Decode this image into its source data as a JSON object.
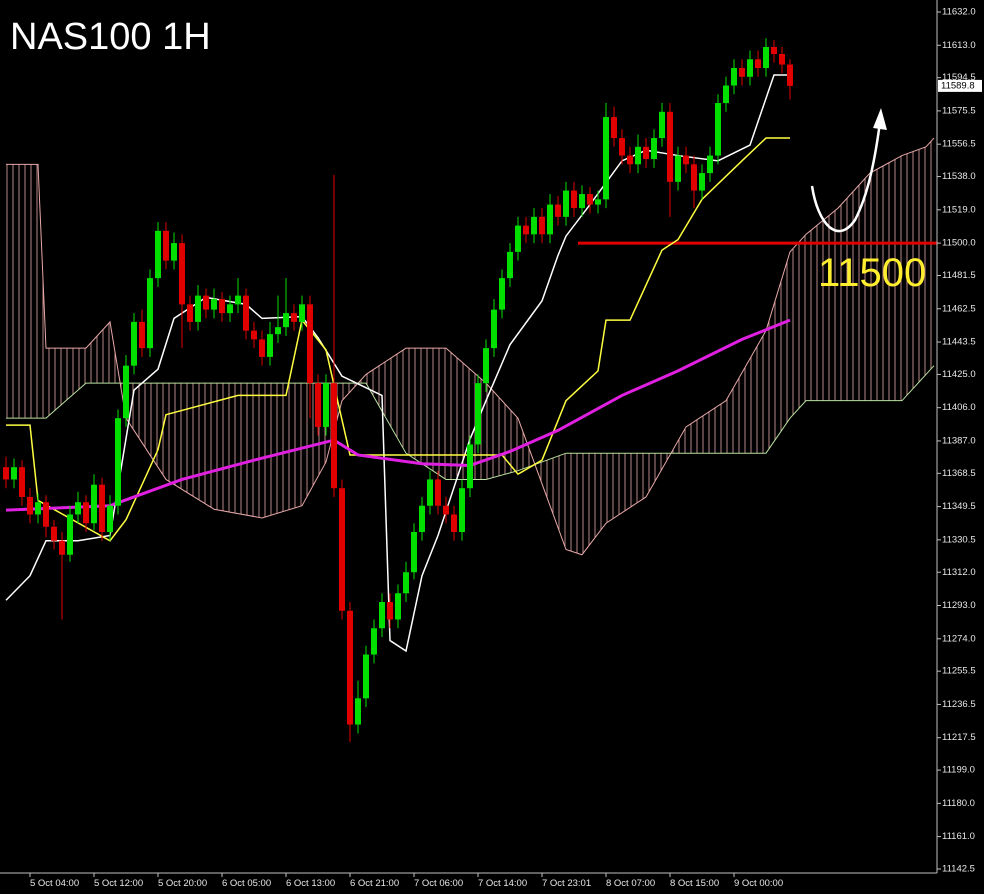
{
  "chart_data": {
    "type": "candlestick",
    "title": "NAS100 1H",
    "annotation": "11500",
    "last_price": 11589.8,
    "up_color": "#00e000",
    "down_color": "#e00000",
    "categories": [
      null,
      null,
      null,
      "5 Oct 04:00",
      null,
      null,
      null,
      null,
      null,
      null,
      null,
      "5 Oct 12:00",
      null,
      null,
      null,
      null,
      null,
      null,
      null,
      "5 Oct 20:00",
      null,
      null,
      null,
      null,
      null,
      null,
      null,
      "6 Oct 05:00",
      null,
      null,
      null,
      null,
      null,
      null,
      null,
      "6 Oct 13:00",
      null,
      null,
      null,
      null,
      null,
      null,
      null,
      "6 Oct 21:00",
      null,
      null,
      null,
      null,
      null,
      null,
      null,
      "7 Oct 06:00",
      null,
      null,
      null,
      null,
      null,
      null,
      null,
      "7 Oct 14:00",
      null,
      null,
      null,
      null,
      null,
      null,
      null,
      "7 Oct 23:01",
      null,
      null,
      null,
      null,
      null,
      null,
      null,
      "8 Oct 07:00",
      null,
      null,
      null,
      null,
      null,
      null,
      null,
      "8 Oct 15:00",
      null,
      null,
      null,
      null,
      null,
      null,
      null,
      "9 Oct 00:00",
      null,
      null,
      null,
      null,
      null,
      null,
      null
    ],
    "open": [
      11372,
      11365,
      11372,
      11355,
      11345,
      11352,
      11338,
      11330,
      11322,
      11345,
      11352,
      11340,
      11362,
      11335,
      11350,
      11400,
      11430,
      11455,
      11440,
      11480,
      11507,
      11490,
      11500,
      11465,
      11455,
      11470,
      11462,
      11468,
      11460,
      11465,
      11470,
      11450,
      11445,
      11435,
      11448,
      11452,
      11460,
      11455,
      11465,
      11420,
      11395,
      11420,
      11360,
      11290,
      11225,
      11240,
      11265,
      11280,
      11295,
      11285,
      11300,
      11312,
      11335,
      11350,
      11365,
      11350,
      11345,
      11335,
      11360,
      11385,
      11420,
      11440,
      11462,
      11480,
      11495,
      11510,
      11505,
      11515,
      11505,
      11522,
      11515,
      11530,
      11520,
      11528,
      11522,
      11525,
      11572,
      11560,
      11550,
      11545,
      11555,
      11548,
      11560,
      11575,
      11535,
      11550,
      11545,
      11530,
      11540,
      11550,
      11580,
      11590,
      11600,
      11595,
      11605,
      11600,
      11612,
      11608,
      11602
    ],
    "high": [
      11378,
      11377,
      11376,
      11360,
      11357,
      11356,
      11342,
      11335,
      11350,
      11358,
      11356,
      11368,
      11366,
      11356,
      11405,
      11436,
      11460,
      11462,
      11485,
      11512,
      11512,
      11506,
      11505,
      11470,
      11476,
      11474,
      11474,
      11472,
      11470,
      11480,
      11474,
      11455,
      11450,
      11455,
      11470,
      11480,
      11465,
      11470,
      11470,
      11425,
      11425,
      11539,
      11365,
      11295,
      11250,
      11270,
      11285,
      11300,
      11300,
      11305,
      11318,
      11340,
      11355,
      11370,
      11370,
      11355,
      11350,
      11365,
      11390,
      11425,
      11445,
      11468,
      11485,
      11500,
      11515,
      11515,
      11520,
      11520,
      11528,
      11527,
      11535,
      11535,
      11533,
      11532,
      11530,
      11580,
      11578,
      11565,
      11555,
      11562,
      11560,
      11565,
      11580,
      11580,
      11555,
      11555,
      11550,
      11545,
      11555,
      11585,
      11595,
      11605,
      11605,
      11610,
      11610,
      11617,
      11616,
      11612,
      11605
    ],
    "low": [
      11360,
      11360,
      11350,
      11340,
      11340,
      11332,
      11325,
      11285,
      11318,
      11340,
      11335,
      11336,
      11330,
      11330,
      11345,
      11395,
      11425,
      11435,
      11435,
      11475,
      11485,
      11485,
      11440,
      11450,
      11450,
      11457,
      11457,
      11455,
      11455,
      11460,
      11445,
      11440,
      11430,
      11430,
      11443,
      11447,
      11450,
      11450,
      11400,
      11390,
      11390,
      11355,
      11285,
      11215,
      11220,
      11235,
      11260,
      11275,
      11280,
      11280,
      11295,
      11308,
      11330,
      11345,
      11345,
      11340,
      11330,
      11330,
      11355,
      11380,
      11415,
      11435,
      11457,
      11475,
      11490,
      11500,
      11500,
      11500,
      11500,
      11510,
      11510,
      11515,
      11515,
      11517,
      11517,
      11520,
      11555,
      11545,
      11540,
      11540,
      11543,
      11543,
      11555,
      11515,
      11530,
      11540,
      11520,
      11525,
      11535,
      11545,
      11575,
      11585,
      11590,
      11590,
      11595,
      11595,
      11603,
      11597,
      11582
    ],
    "close": [
      11365,
      11372,
      11355,
      11345,
      11352,
      11338,
      11330,
      11322,
      11345,
      11352,
      11340,
      11362,
      11335,
      11350,
      11400,
      11430,
      11455,
      11440,
      11480,
      11507,
      11490,
      11500,
      11465,
      11455,
      11470,
      11462,
      11468,
      11460,
      11465,
      11470,
      11450,
      11445,
      11435,
      11448,
      11452,
      11460,
      11455,
      11465,
      11420,
      11395,
      11420,
      11360,
      11290,
      11225,
      11240,
      11265,
      11280,
      11295,
      11285,
      11300,
      11312,
      11335,
      11350,
      11365,
      11350,
      11345,
      11335,
      11360,
      11385,
      11420,
      11440,
      11462,
      11480,
      11495,
      11510,
      11505,
      11515,
      11505,
      11522,
      11515,
      11530,
      11520,
      11528,
      11522,
      11525,
      11572,
      11560,
      11550,
      11545,
      11555,
      11548,
      11560,
      11575,
      11535,
      11550,
      11545,
      11530,
      11540,
      11550,
      11580,
      11590,
      11600,
      11595,
      11605,
      11600,
      11612,
      11608,
      11602,
      11589.8
    ],
    "lines": [
      {
        "color": "#ffffff",
        "width": 1.5,
        "x": [
          0,
          3,
          5,
          9,
          13,
          16,
          19,
          21,
          25,
          30,
          32,
          37,
          39,
          42,
          47,
          48,
          50,
          52,
          54,
          58,
          60,
          63,
          67,
          69,
          70,
          73,
          77,
          80,
          84,
          89,
          93,
          96,
          98
        ],
        "values": [
          11296,
          11310,
          11330,
          11330,
          11333,
          11416,
          11428,
          11457,
          11469,
          11465,
          11457,
          11458,
          11446,
          11424,
          11413,
          11273,
          11267,
          11310,
          11333,
          11388,
          11410,
          11442,
          11467,
          11493,
          11504,
          11522,
          11547,
          11553,
          11550,
          11547,
          11556,
          11596,
          11596
        ]
      },
      {
        "color": "#ffff40",
        "width": 1.5,
        "x": [
          0,
          3,
          4,
          13,
          15,
          19,
          20,
          29,
          35,
          37,
          40,
          43,
          62,
          64,
          67,
          70,
          74,
          75,
          78,
          82,
          84,
          87,
          92,
          95,
          98
        ],
        "values": [
          11396,
          11396,
          11353,
          11330,
          11342,
          11382,
          11402,
          11413,
          11413,
          11456,
          11439,
          11379,
          11379,
          11368,
          11376,
          11410,
          11427,
          11456,
          11456,
          11496,
          11502,
          11525,
          11547,
          11560,
          11560
        ]
      },
      {
        "color": "#e020e0",
        "width": 3,
        "x": [
          0,
          13,
          22,
          31,
          41,
          44,
          52,
          58,
          63,
          69,
          77,
          84,
          92,
          98
        ],
        "values": [
          11347.5,
          11350,
          11365,
          11376,
          11387.5,
          11379,
          11374,
          11373,
          11381,
          11393,
          11413,
          11427,
          11445,
          11456
        ]
      }
    ],
    "cloud": {
      "color_a": "#e8a8a8",
      "color_b": "#b8e0a0",
      "x": [
        0,
        4,
        5,
        10,
        13,
        15,
        20,
        26,
        32,
        37,
        40,
        42,
        45,
        50,
        55,
        60,
        64,
        70,
        72,
        75,
        80,
        85,
        90,
        95,
        98,
        100,
        104,
        108,
        112,
        115,
        116
      ],
      "span_a": [
        11545,
        11545,
        11440,
        11440,
        11455,
        11400,
        11365,
        11348,
        11343,
        11350,
        11375,
        11410,
        11425,
        11440,
        11440,
        11420,
        11400,
        11325,
        11322,
        11340,
        11355,
        11395,
        11410,
        11450,
        11495,
        11505,
        11520,
        11540,
        11550,
        11555,
        11560
      ],
      "span_b": [
        11400,
        11400,
        11400,
        11420,
        11420,
        11420,
        11420,
        11420,
        11420,
        11420,
        11420,
        11420,
        11420,
        11380,
        11365,
        11365,
        11370,
        11380,
        11380,
        11380,
        11380,
        11380,
        11380,
        11380,
        11400,
        11410,
        11410,
        11410,
        11410,
        11425,
        11430
      ]
    },
    "hline": {
      "value": 11500,
      "color": "#e00000"
    },
    "ylim": [
      11142.5,
      11632
    ],
    "yticks": [
      {
        "value": 11632,
        "label": "11632.0"
      },
      {
        "value": 11613,
        "label": "11613.0"
      },
      11594.5,
      11575.5,
      11556.5,
      {
        "value": 11538,
        "label": "11538.0"
      },
      {
        "value": 11519,
        "label": "11519.0"
      },
      {
        "value": 11500,
        "label": "11500.0"
      },
      11481.5,
      11462.5,
      11443.5,
      {
        "value": 11425,
        "label": "11425.0"
      },
      {
        "value": 11406,
        "label": "11406.0"
      },
      {
        "value": 11387,
        "label": "11387.0"
      },
      11368.5,
      11349.5,
      11330.5,
      {
        "value": 11312,
        "label": "11312.0"
      },
      {
        "value": 11293,
        "label": "11293.0"
      },
      {
        "value": 11274,
        "label": "11274.0"
      },
      11255.5,
      11236.5,
      11217.5,
      {
        "value": 11199,
        "label": "11199.0"
      },
      {
        "value": 11180,
        "label": "11180.0"
      },
      {
        "value": 11161,
        "label": "11161.0"
      },
      11142.5
    ]
  }
}
